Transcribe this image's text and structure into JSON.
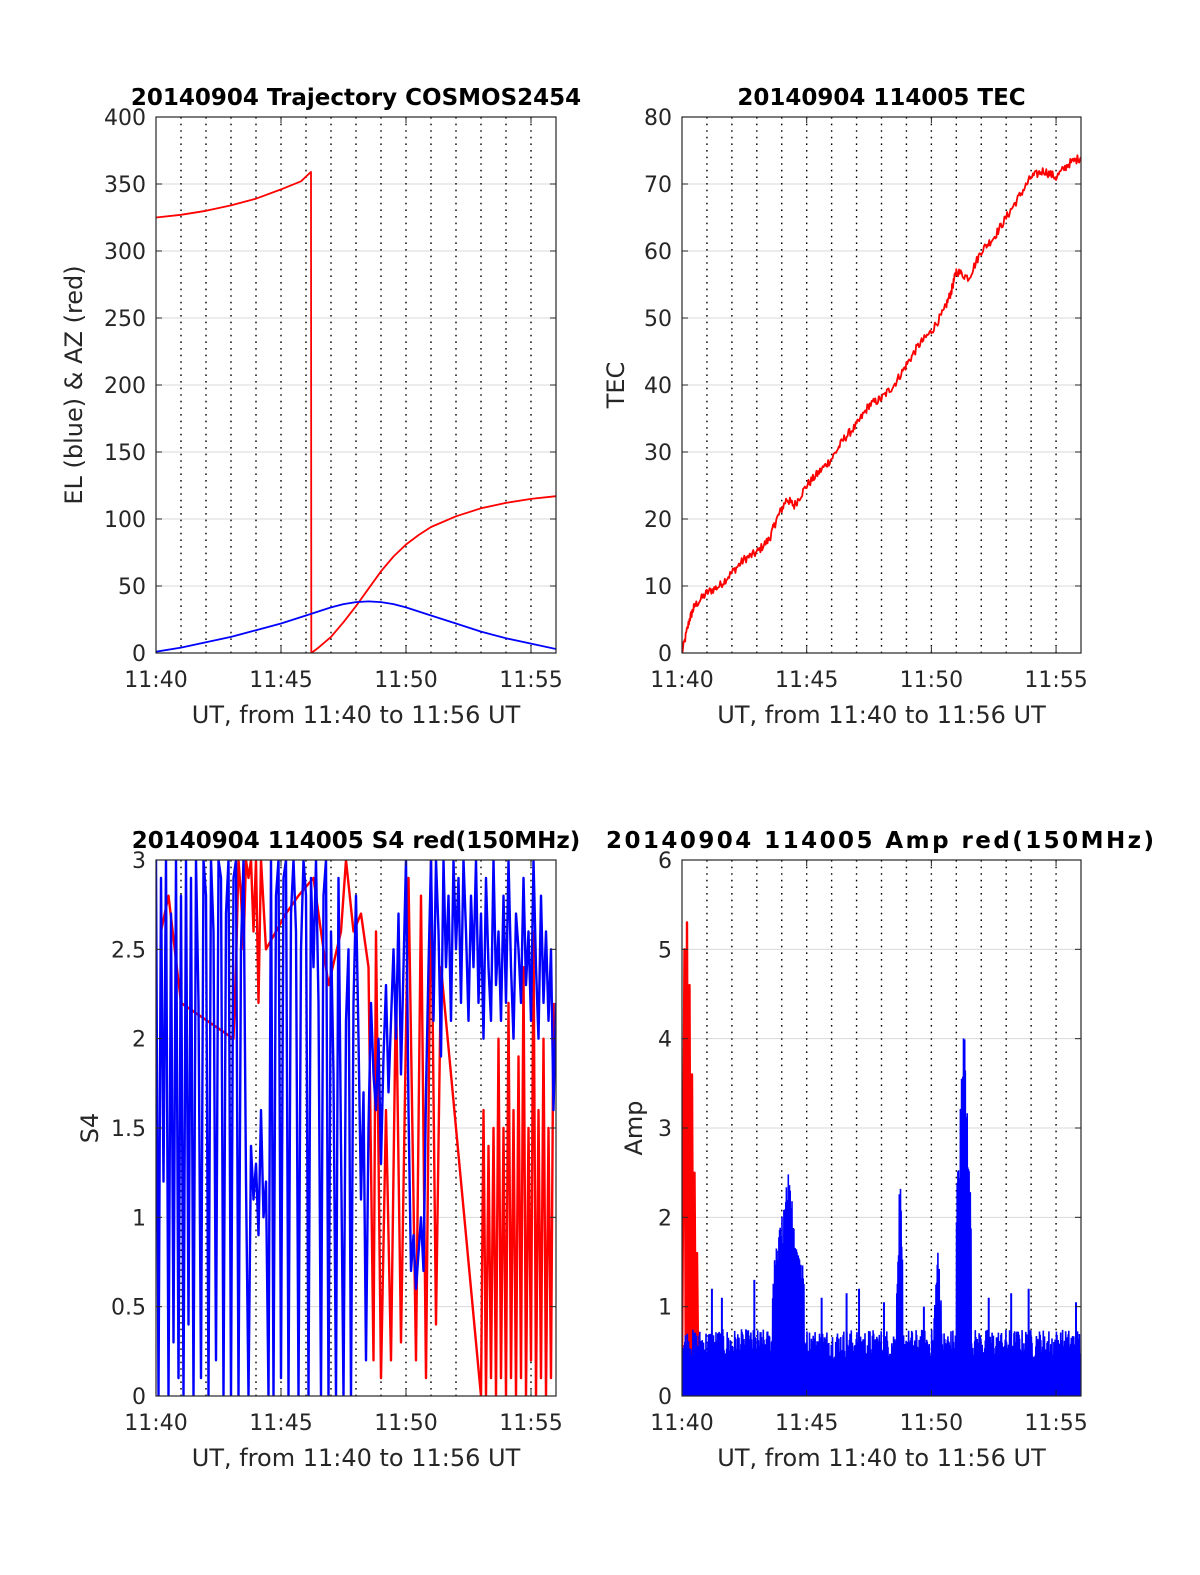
{
  "chart_data": [
    {
      "type": "line",
      "title": "20140904 Trajectory COSMOS2454",
      "xlabel": "UT, from 11:40 to 11:56 UT",
      "ylabel": "EL (blue) & AZ (red)",
      "xlim": [
        0,
        16
      ],
      "ylim": [
        0,
        400
      ],
      "yticks": [
        0,
        50,
        100,
        150,
        200,
        250,
        300,
        350,
        400
      ],
      "ytick_labels": [
        "0",
        "50",
        "100",
        "150",
        "200",
        "250",
        "300",
        "350",
        "400"
      ],
      "xticks": [
        0,
        5,
        10,
        15
      ],
      "xtick_labels": [
        "11:40",
        "11:45",
        "11:50",
        "11:55"
      ],
      "grid": true,
      "series": [
        {
          "name": "AZ",
          "color": "#ff0000",
          "x": [
            0,
            1,
            2,
            3,
            4,
            5,
            5.8,
            6.2,
            6.21,
            6.5,
            7,
            7.5,
            8,
            8.5,
            9,
            9.5,
            10,
            10.5,
            11,
            12,
            13,
            14,
            15,
            16
          ],
          "y": [
            325,
            327,
            330,
            334,
            339,
            346,
            352,
            359,
            0,
            4,
            12,
            23,
            35,
            48,
            61,
            72,
            81,
            88,
            94,
            102,
            108,
            112,
            115,
            117
          ]
        },
        {
          "name": "EL",
          "color": "#0000ff",
          "x": [
            0,
            1,
            2,
            3,
            4,
            5,
            6,
            7,
            7.5,
            8,
            8.5,
            9,
            9.5,
            10,
            11,
            12,
            13,
            14,
            15,
            16
          ],
          "y": [
            1,
            4,
            8,
            12,
            17,
            22,
            28,
            34,
            36.5,
            38,
            38.5,
            38,
            36.5,
            34,
            28,
            22,
            16,
            11,
            7,
            3
          ]
        }
      ]
    },
    {
      "type": "line",
      "title": "20140904 114005 TEC",
      "xlabel": "UT, from 11:40 to 11:56 UT",
      "ylabel": "TEC",
      "xlim": [
        0,
        16
      ],
      "ylim": [
        0,
        80
      ],
      "yticks": [
        0,
        10,
        20,
        30,
        40,
        50,
        60,
        70,
        80
      ],
      "ytick_labels": [
        "0",
        "10",
        "20",
        "30",
        "40",
        "50",
        "60",
        "70",
        "80"
      ],
      "xticks": [
        0,
        5,
        10,
        15
      ],
      "xtick_labels": [
        "11:40",
        "11:45",
        "11:50",
        "11:55"
      ],
      "grid": true,
      "series": [
        {
          "name": "TEC",
          "color": "#ff0000",
          "x": [
            0,
            0.3,
            0.5,
            1,
            1.5,
            2,
            2.5,
            3,
            3.5,
            3.8,
            4.2,
            4.5,
            5,
            5.5,
            6,
            6.5,
            7,
            7.5,
            8,
            8.5,
            9,
            9.5,
            10,
            10.5,
            10.8,
            11,
            11.5,
            12,
            12.5,
            13,
            13.5,
            14,
            14.5,
            15,
            15.5,
            16
          ],
          "y": [
            0,
            5,
            7,
            9,
            10,
            12,
            14,
            15,
            17,
            20,
            23,
            22,
            25,
            27,
            29,
            32,
            34,
            37,
            38,
            40,
            43,
            46,
            48,
            51,
            54,
            57,
            56,
            60,
            62,
            65,
            68,
            71,
            72,
            71,
            73,
            74
          ]
        }
      ]
    },
    {
      "type": "line",
      "title": "20140904 114005 S4 red(150MHz)",
      "xlabel": "UT, from 11:40 to 11:56 UT",
      "ylabel": "S4",
      "xlim": [
        0,
        16
      ],
      "ylim": [
        0,
        3
      ],
      "yticks": [
        0,
        0.5,
        1,
        1.5,
        2,
        2.5,
        3
      ],
      "ytick_labels": [
        "0",
        "0.5",
        "1",
        "1.5",
        "2",
        "2.5",
        "3"
      ],
      "xticks": [
        0,
        5,
        10,
        15
      ],
      "xtick_labels": [
        "11:40",
        "11:45",
        "11:50",
        "11:55"
      ],
      "grid": true,
      "series": [
        {
          "name": "S4 red",
          "color": "#ff0000",
          "x": [
            0.2,
            0.5,
            1.0,
            3.1,
            3.2,
            3.3,
            3.4,
            3.5,
            3.6,
            3.7,
            3.8,
            3.9,
            4.0,
            4.1,
            4.2,
            4.4,
            5.2,
            5.7,
            6.3,
            6.9,
            7.4,
            7.6,
            7.9,
            8.2,
            8.5,
            8.7,
            8.8,
            9.0,
            9.2,
            9.4,
            9.6,
            9.8,
            10.1,
            10.4,
            10.6,
            10.8,
            11.0,
            11.2,
            11.4,
            13.0,
            13.1,
            13.2,
            13.3,
            13.4,
            13.5,
            13.6,
            13.7,
            13.8,
            13.9,
            14.0,
            14.1,
            14.2,
            14.3,
            14.4,
            14.5,
            14.6,
            14.7,
            14.8,
            14.9,
            15.0,
            15.1,
            15.2,
            15.3,
            15.4,
            15.5,
            15.6,
            15.7,
            15.8,
            15.9
          ],
          "y": [
            2.6,
            2.8,
            2.2,
            2.0,
            2.4,
            3.0,
            2.8,
            2.5,
            3.0,
            2.9,
            3.0,
            2.6,
            3.0,
            2.2,
            3.0,
            2.5,
            2.7,
            2.8,
            2.9,
            2.3,
            2.6,
            3.0,
            2.6,
            2.7,
            2.4,
            0.2,
            2.6,
            0.1,
            1.6,
            0.2,
            2.3,
            0.3,
            2.9,
            0.2,
            2.8,
            0.1,
            3.0,
            0.4,
            2.4,
            0.0,
            1.6,
            0.0,
            1.4,
            0.1,
            1.5,
            0.0,
            2.0,
            0.1,
            1.5,
            0.0,
            2.2,
            0.1,
            1.6,
            0.0,
            1.9,
            0.1,
            2.4,
            0.0,
            1.5,
            0.2,
            2.6,
            0.0,
            1.6,
            0.1,
            2.0,
            0.0,
            1.5,
            0.1,
            2.2
          ]
        },
        {
          "name": "S4 blue",
          "color": "#0000ff",
          "x": [
            0,
            0.1,
            0.2,
            0.3,
            0.4,
            0.5,
            0.6,
            0.7,
            0.8,
            0.9,
            1.0,
            1.1,
            1.2,
            1.3,
            1.4,
            1.5,
            1.6,
            1.7,
            1.8,
            1.9,
            2.0,
            2.1,
            2.2,
            2.3,
            2.4,
            2.5,
            2.6,
            2.7,
            2.8,
            2.9,
            3.0,
            3.1,
            3.2,
            3.3,
            3.4,
            3.5,
            3.6,
            3.7,
            3.8,
            3.9,
            4.0,
            4.1,
            4.2,
            4.3,
            4.4,
            4.5,
            4.6,
            4.7,
            4.8,
            4.9,
            5.0,
            5.1,
            5.2,
            5.3,
            5.4,
            5.5,
            5.6,
            5.7,
            5.8,
            5.9,
            6.0,
            6.1,
            6.2,
            6.3,
            6.4,
            6.5,
            6.6,
            6.7,
            6.8,
            6.9,
            7.0,
            7.1,
            7.2,
            7.3,
            7.4,
            7.5,
            7.6,
            7.7,
            7.8,
            7.9,
            8.0,
            8.1,
            8.2,
            8.3,
            8.4,
            8.5,
            8.6,
            8.7,
            8.8,
            8.9,
            9.0,
            9.1,
            9.2,
            9.3,
            9.4,
            9.5,
            9.6,
            9.7,
            9.8,
            9.9,
            10.0,
            10.1,
            10.2,
            10.3,
            10.4,
            10.5,
            10.6,
            10.7,
            10.8,
            10.9,
            11.0,
            11.1,
            11.2,
            11.3,
            11.4,
            11.5,
            11.6,
            11.7,
            11.8,
            11.9,
            12.0,
            12.1,
            12.2,
            12.3,
            12.4,
            12.5,
            12.6,
            12.7,
            12.8,
            12.9,
            13.0,
            13.1,
            13.2,
            13.3,
            13.4,
            13.5,
            13.6,
            13.7,
            13.8,
            13.9,
            14.0,
            14.1,
            14.2,
            14.3,
            14.4,
            14.5,
            14.6,
            14.7,
            14.8,
            14.9,
            15.0,
            15.1,
            15.2,
            15.3,
            15.4,
            15.5,
            15.6,
            15.7,
            15.8,
            15.9,
            16.0
          ],
          "y": [
            3.0,
            0.0,
            2.9,
            1.2,
            3.0,
            0.0,
            2.7,
            0.3,
            3.0,
            0.1,
            2.8,
            0.0,
            3.0,
            0.4,
            2.9,
            0.0,
            3.0,
            2.2,
            0.1,
            3.0,
            2.8,
            0.0,
            3.0,
            2.6,
            0.2,
            3.0,
            2.9,
            0.0,
            2.7,
            3.0,
            0.0,
            2.9,
            3.0,
            0.0,
            2.5,
            3.0,
            1.2,
            0.0,
            1.4,
            1.1,
            1.3,
            0.9,
            1.6,
            1.0,
            1.2,
            0.0,
            3.0,
            0.0,
            2.8,
            3.0,
            0.1,
            2.9,
            3.0,
            0.0,
            2.7,
            3.0,
            2.6,
            0.0,
            2.5,
            3.0,
            2.8,
            0.0,
            2.9,
            2.4,
            3.0,
            2.2,
            0.0,
            2.8,
            3.0,
            0.0,
            2.6,
            1.8,
            0.0,
            2.9,
            1.4,
            0.0,
            2.1,
            2.5,
            0.0,
            2.2,
            2.8,
            2.0,
            1.1,
            1.7,
            0.2,
            1.5,
            2.2,
            1.8,
            1.6,
            2.0,
            1.3,
            1.9,
            2.3,
            1.7,
            2.1,
            2.5,
            2.0,
            2.7,
            1.8,
            2.4,
            3.0,
            1.6,
            0.7,
            0.9,
            0.6,
            0.8,
            1.0,
            0.7,
            1.7,
            2.4,
            3.0,
            2.1,
            3.0,
            2.6,
            1.9,
            3.0,
            2.4,
            2.8,
            2.1,
            3.0,
            2.5,
            2.9,
            2.2,
            3.0,
            2.6,
            2.1,
            2.8,
            2.4,
            3.0,
            2.2,
            2.7,
            2.0,
            2.9,
            2.4,
            2.1,
            3.0,
            2.3,
            2.6,
            2.1,
            2.8,
            2.2,
            3.0,
            2.4,
            2.0,
            2.7,
            2.5,
            2.2,
            2.9,
            2.3,
            2.6,
            2.1,
            3.0,
            2.4,
            2.0,
            2.8,
            2.2,
            2.6,
            2.1,
            2.5,
            1.6,
            2.2
          ]
        }
      ]
    },
    {
      "type": "line",
      "title": "20140904 114005 Amp red(150MHz)",
      "xlabel": "UT, from 11:40 to 11:56 UT",
      "ylabel": "Amp",
      "xlim": [
        0,
        16
      ],
      "ylim": [
        0,
        6
      ],
      "yticks": [
        0,
        1,
        2,
        3,
        4,
        5,
        6
      ],
      "ytick_labels": [
        "0",
        "1",
        "2",
        "3",
        "4",
        "5",
        "6"
      ],
      "xticks": [
        0,
        5,
        10,
        15
      ],
      "xtick_labels": [
        "11:40",
        "11:45",
        "11:50",
        "11:55"
      ],
      "grid": true,
      "series": [
        {
          "name": "Amp red",
          "color": "#ff0000",
          "x": [
            0.0,
            0.1,
            0.15,
            0.2,
            0.25,
            0.3,
            0.35,
            0.4,
            0.45,
            0.5,
            0.55,
            0.6,
            0.65
          ],
          "y": [
            0.2,
            5.0,
            0.5,
            5.3,
            0.3,
            4.6,
            0.4,
            3.6,
            0.3,
            2.5,
            0.4,
            1.6,
            0.3
          ],
          "spikes": [
            {
              "x": 4.0,
              "y": 0.4
            },
            {
              "x": 14.0,
              "y": 0.3
            }
          ]
        },
        {
          "name": "Amp blue",
          "color": "#0000ff",
          "base_level": 0.75,
          "bursts": [
            {
              "x_start": 3.6,
              "x_end": 4.9,
              "peak": 2.5
            },
            {
              "x_start": 8.6,
              "x_end": 8.85,
              "peak": 2.55
            },
            {
              "x_start": 10.1,
              "x_end": 10.4,
              "peak": 1.75
            },
            {
              "x_start": 11.0,
              "x_end": 11.6,
              "peak": 4.25
            }
          ],
          "spikes": [
            {
              "x": 1.2,
              "y": 1.2
            },
            {
              "x": 1.6,
              "y": 1.1
            },
            {
              "x": 2.9,
              "y": 1.3
            },
            {
              "x": 5.6,
              "y": 1.1
            },
            {
              "x": 6.6,
              "y": 1.15
            },
            {
              "x": 7.1,
              "y": 1.2
            },
            {
              "x": 8.1,
              "y": 1.05
            },
            {
              "x": 9.7,
              "y": 1.0
            },
            {
              "x": 12.3,
              "y": 1.1
            },
            {
              "x": 13.2,
              "y": 1.15
            },
            {
              "x": 13.9,
              "y": 1.2
            },
            {
              "x": 15.8,
              "y": 1.05
            }
          ]
        }
      ]
    }
  ]
}
